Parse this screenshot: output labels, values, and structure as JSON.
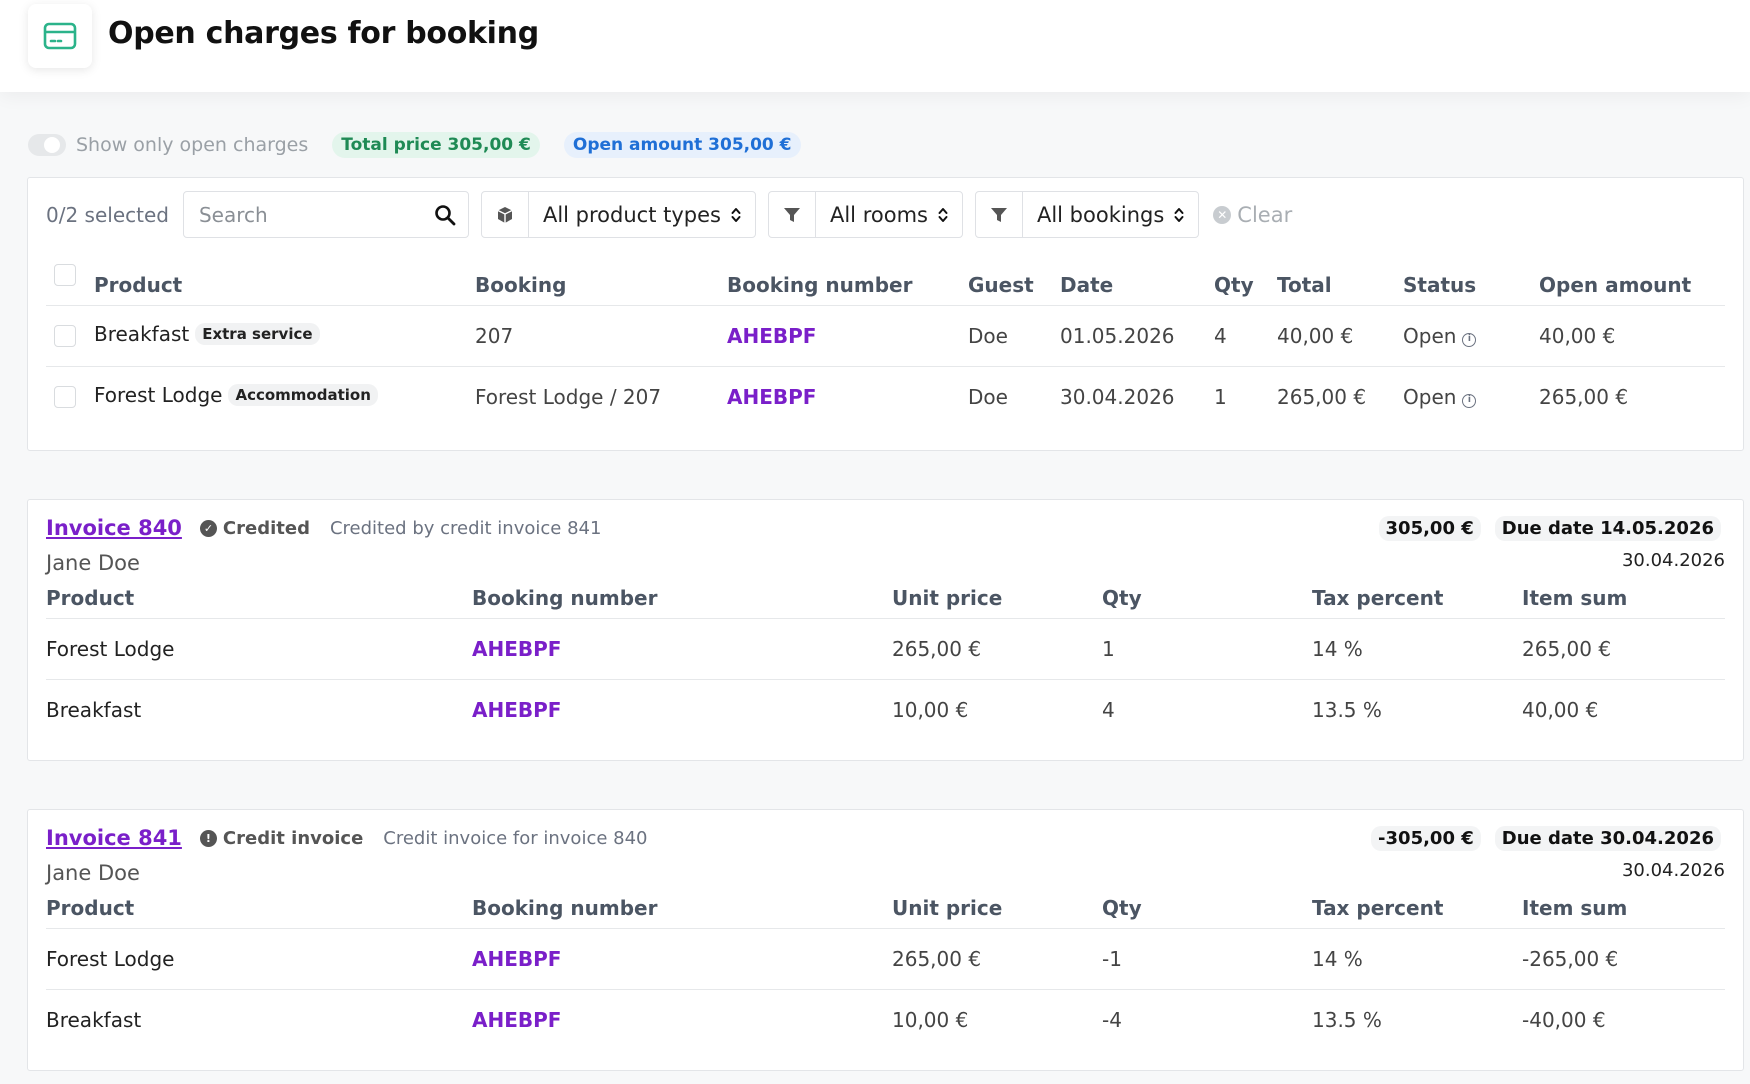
{
  "header": {
    "title": "Open charges for booking",
    "icon": "credit-card-icon"
  },
  "summary": {
    "toggle_label": "Show only open charges",
    "total_price": "Total price 305,00 €",
    "open_amount": "Open amount 305,00 €"
  },
  "filters": {
    "selected_count": "0/2 selected",
    "search_placeholder": "Search",
    "product_types": "All product types",
    "rooms": "All rooms",
    "bookings": "All bookings",
    "clear": "Clear"
  },
  "charges_table": {
    "headers": [
      "Product",
      "Booking",
      "Booking number",
      "Guest",
      "Date",
      "Qty",
      "Total",
      "Status",
      "Open amount"
    ],
    "rows": [
      {
        "product": "Breakfast",
        "badge": "Extra service",
        "booking": "207",
        "booking_number": "AHEBPF",
        "guest": "Doe",
        "date": "01.05.2026",
        "qty": "4",
        "total": "40,00 €",
        "status": "Open",
        "open_amount": "40,00 €"
      },
      {
        "product": "Forest Lodge",
        "badge": "Accommodation",
        "booking": "Forest Lodge / 207",
        "booking_number": "AHEBPF",
        "guest": "Doe",
        "date": "30.04.2026",
        "qty": "1",
        "total": "265,00 €",
        "status": "Open",
        "open_amount": "265,00 €"
      }
    ]
  },
  "invoices": [
    {
      "title": "Invoice 840",
      "status": "Credited",
      "status_icon": "check-circle-icon",
      "description": "Credited by credit invoice 841",
      "guest": "Jane Doe",
      "amount": "305,00 €",
      "due_date": "Due date 14.05.2026",
      "date": "30.04.2026",
      "headers": [
        "Product",
        "Booking number",
        "Unit price",
        "Qty",
        "Tax percent",
        "Item sum"
      ],
      "rows": [
        {
          "product": "Forest Lodge",
          "booking_number": "AHEBPF",
          "unit_price": "265,00 €",
          "qty": "1",
          "tax": "14 %",
          "item_sum": "265,00 €"
        },
        {
          "product": "Breakfast",
          "booking_number": "AHEBPF",
          "unit_price": "10,00 €",
          "qty": "4",
          "tax": "13.5 %",
          "item_sum": "40,00 €"
        }
      ]
    },
    {
      "title": "Invoice 841",
      "status": "Credit invoice",
      "status_icon": "exclamation-circle-icon",
      "description": "Credit invoice for invoice 840",
      "guest": "Jane Doe",
      "amount": "-305,00 €",
      "due_date": "Due date 30.04.2026",
      "date": "30.04.2026",
      "headers": [
        "Product",
        "Booking number",
        "Unit price",
        "Qty",
        "Tax percent",
        "Item sum"
      ],
      "rows": [
        {
          "product": "Forest Lodge",
          "booking_number": "AHEBPF",
          "unit_price": "265,00 €",
          "qty": "-1",
          "tax": "14 %",
          "item_sum": "-265,00 €"
        },
        {
          "product": "Breakfast",
          "booking_number": "AHEBPF",
          "unit_price": "10,00 €",
          "qty": "-4",
          "tax": "13.5 %",
          "item_sum": "-40,00 €"
        }
      ]
    }
  ],
  "colors": {
    "accent_purple": "#7a1fc9",
    "green": "#1f8a55",
    "blue": "#1f6fd6",
    "icon_teal": "#2bb38a"
  }
}
